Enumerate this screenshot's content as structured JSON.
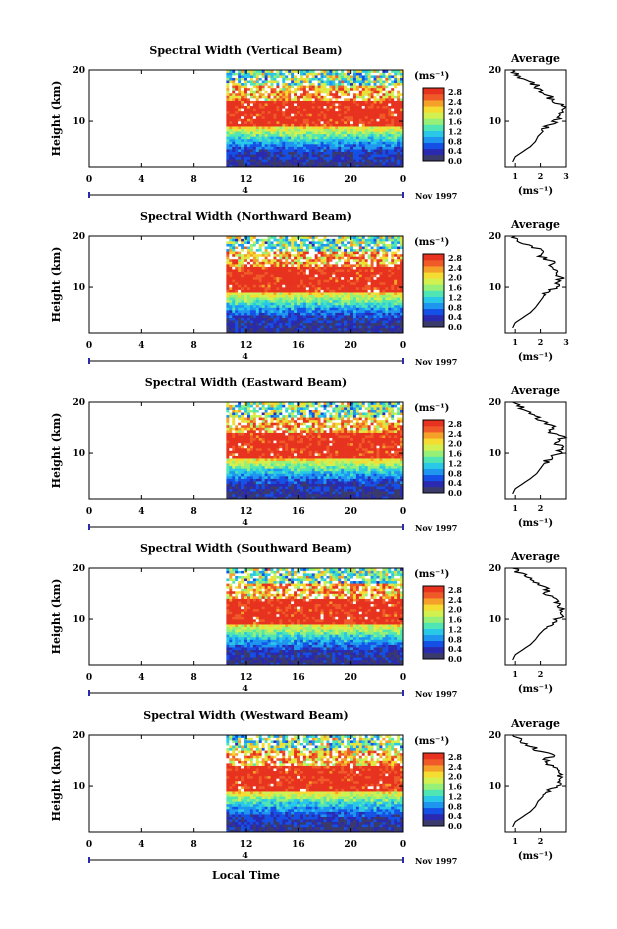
{
  "chart_data": [
    {
      "type": "heatmap",
      "title": "Spectral Width (Vertical Beam)",
      "ylabel": "Height (km)",
      "x_ticks": [
        "0",
        "4",
        "8",
        "12",
        "16",
        "20",
        "0"
      ],
      "y_ticks": [
        "20",
        "10"
      ],
      "xlim": [
        0,
        24
      ],
      "ylim": [
        1,
        20
      ],
      "data_start_hour": 10.5,
      "date_marker": "4",
      "month_label": "Nov 1997",
      "colorbar": {
        "unit": "(ms⁻¹)",
        "ticks": [
          "2.8",
          "2.4",
          "2.0",
          "1.6",
          "1.2",
          "0.8",
          "0.4",
          "0.0"
        ],
        "range": [
          0,
          2.8
        ]
      },
      "profile": {
        "title": "Average",
        "x_ticks": [
          "1",
          "2",
          "3"
        ],
        "y_ticks": [
          "20",
          "10"
        ],
        "xlabel": "(ms⁻¹)",
        "xlim": [
          0.6,
          3
        ],
        "ylim": [
          1,
          20
        ],
        "heights": [
          2,
          3,
          4,
          5,
          6,
          7,
          8,
          9,
          10,
          11,
          12,
          13,
          14,
          15,
          16,
          17,
          18,
          19,
          20
        ],
        "values": [
          0.9,
          1.0,
          1.3,
          1.6,
          1.8,
          1.9,
          2.1,
          2.3,
          2.6,
          2.85,
          2.9,
          2.8,
          2.5,
          2.3,
          2.05,
          1.8,
          1.4,
          1.1,
          0.9
        ]
      }
    },
    {
      "type": "heatmap",
      "title": "Spectral Width (Northward Beam)",
      "ylabel": "Height (km)",
      "x_ticks": [
        "0",
        "4",
        "8",
        "12",
        "16",
        "20",
        "0"
      ],
      "y_ticks": [
        "20",
        "10"
      ],
      "xlim": [
        0,
        24
      ],
      "ylim": [
        1,
        20
      ],
      "data_start_hour": 10.5,
      "date_marker": "4",
      "month_label": "Nov 1997",
      "colorbar": {
        "unit": "(ms⁻¹)",
        "ticks": [
          "2.8",
          "2.4",
          "2.0",
          "1.6",
          "1.2",
          "0.8",
          "0.4",
          "0.0"
        ],
        "range": [
          0,
          2.8
        ]
      },
      "profile": {
        "title": "Average",
        "x_ticks": [
          "1",
          "2",
          "3"
        ],
        "y_ticks": [
          "20",
          "10"
        ],
        "xlabel": "(ms⁻¹)",
        "xlim": [
          0.6,
          3
        ],
        "ylim": [
          1,
          20
        ],
        "heights": [
          2,
          3,
          4,
          5,
          6,
          7,
          8,
          9,
          10,
          11,
          12,
          13,
          14,
          15,
          16,
          17,
          18,
          19,
          20
        ],
        "values": [
          0.9,
          1.0,
          1.3,
          1.6,
          1.8,
          1.95,
          2.1,
          2.3,
          2.55,
          2.8,
          2.75,
          2.6,
          2.3,
          2.5,
          2.0,
          2.2,
          1.6,
          1.2,
          1.0
        ]
      }
    },
    {
      "type": "heatmap",
      "title": "Spectral Width (Eastward Beam)",
      "ylabel": "Height (km)",
      "x_ticks": [
        "0",
        "4",
        "8",
        "12",
        "16",
        "20",
        "0"
      ],
      "y_ticks": [
        "20",
        "10"
      ],
      "xlim": [
        0,
        24
      ],
      "ylim": [
        1,
        20
      ],
      "data_start_hour": 10.5,
      "date_marker": "4",
      "month_label": "Nov 1997",
      "colorbar": {
        "unit": "(ms⁻¹)",
        "ticks": [
          "2.8",
          "2.4",
          "2.0",
          "1.6",
          "1.2",
          "0.8",
          "0.4",
          "0.0"
        ],
        "range": [
          0,
          2.8
        ]
      },
      "profile": {
        "title": "Average",
        "x_ticks": [
          "1",
          "2"
        ],
        "y_ticks": [
          "20",
          "10"
        ],
        "xlabel": "(ms⁻¹)",
        "xlim": [
          0.6,
          3
        ],
        "ylim": [
          1,
          20
        ],
        "heights": [
          2,
          3,
          4,
          5,
          6,
          7,
          8,
          9,
          10,
          11,
          12,
          13,
          14,
          15,
          16,
          17,
          18,
          19,
          20
        ],
        "values": [
          0.9,
          1.0,
          1.3,
          1.6,
          1.85,
          2.0,
          2.15,
          2.4,
          2.7,
          2.9,
          2.6,
          2.95,
          2.4,
          2.6,
          2.1,
          1.9,
          1.5,
          1.2,
          0.9
        ]
      }
    },
    {
      "type": "heatmap",
      "title": "Spectral Width (Southward Beam)",
      "ylabel": "Height (km)",
      "x_ticks": [
        "0",
        "4",
        "8",
        "12",
        "16",
        "20",
        "0"
      ],
      "y_ticks": [
        "20",
        "10"
      ],
      "xlim": [
        0,
        24
      ],
      "ylim": [
        1,
        20
      ],
      "data_start_hour": 10.5,
      "date_marker": "4",
      "month_label": "Nov 1997",
      "colorbar": {
        "unit": "(ms⁻¹)",
        "ticks": [
          "2.8",
          "2.4",
          "2.0",
          "1.6",
          "1.2",
          "0.8",
          "0.4",
          "0.0"
        ],
        "range": [
          0,
          2.8
        ]
      },
      "profile": {
        "title": "Average",
        "x_ticks": [
          "1",
          "2"
        ],
        "y_ticks": [
          "20",
          "10"
        ],
        "xlabel": "(ms⁻¹)",
        "xlim": [
          0.6,
          3
        ],
        "ylim": [
          1,
          20
        ],
        "heights": [
          2,
          3,
          4,
          5,
          6,
          7,
          8,
          9,
          10,
          11,
          12,
          13,
          14,
          15,
          16,
          17,
          18,
          19,
          20
        ],
        "values": [
          0.9,
          1.0,
          1.3,
          1.6,
          1.8,
          1.95,
          2.15,
          2.4,
          2.65,
          2.9,
          2.8,
          2.6,
          2.5,
          2.2,
          2.3,
          1.9,
          1.5,
          1.2,
          0.9
        ]
      }
    },
    {
      "type": "heatmap",
      "title": "Spectral Width (Westward Beam)",
      "ylabel": "Height (km)",
      "x_ticks": [
        "0",
        "4",
        "8",
        "12",
        "16",
        "20",
        "0"
      ],
      "y_ticks": [
        "20",
        "10"
      ],
      "xlim": [
        0,
        24
      ],
      "ylim": [
        1,
        20
      ],
      "data_start_hour": 10.5,
      "date_marker": "4",
      "month_label": "Nov 1997",
      "xlabel": "Local Time",
      "colorbar": {
        "unit": "(ms⁻¹)",
        "ticks": [
          "2.8",
          "2.4",
          "2.0",
          "1.6",
          "1.2",
          "0.8",
          "0.4",
          "0.0"
        ],
        "range": [
          0,
          2.8
        ]
      },
      "profile": {
        "title": "Average",
        "x_ticks": [
          "1",
          "2"
        ],
        "y_ticks": [
          "20",
          "10"
        ],
        "xlabel": "(ms⁻¹)",
        "xlim": [
          0.6,
          3
        ],
        "ylim": [
          1,
          20
        ],
        "heights": [
          2,
          3,
          4,
          5,
          6,
          7,
          8,
          9,
          10,
          11,
          12,
          13,
          14,
          15,
          16,
          17,
          18,
          19,
          20
        ],
        "values": [
          0.9,
          1.0,
          1.3,
          1.6,
          1.8,
          1.9,
          2.1,
          2.35,
          2.6,
          2.85,
          2.7,
          2.9,
          2.4,
          2.2,
          2.5,
          1.9,
          1.5,
          1.2,
          0.9
        ]
      }
    }
  ],
  "colors": {
    "scale": [
      "#3b3b6b",
      "#2a2ab0",
      "#1450e6",
      "#1e96f0",
      "#28c8e6",
      "#50e6b4",
      "#96f078",
      "#d2f050",
      "#f5dc32",
      "#f5a028",
      "#f05a28",
      "#e6321e"
    ],
    "axis": "#000000",
    "marker": "#2a2ab0"
  }
}
